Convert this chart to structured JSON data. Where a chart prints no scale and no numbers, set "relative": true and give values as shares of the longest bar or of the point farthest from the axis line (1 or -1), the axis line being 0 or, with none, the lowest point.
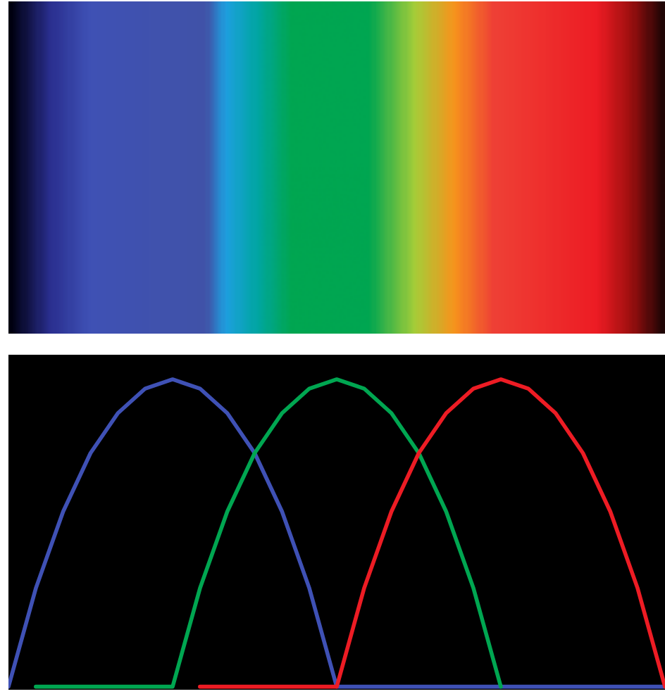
{
  "chart_data": {
    "type": "line",
    "relative": true,
    "marker": "none",
    "line_style": "solid",
    "categories": [
      null,
      null,
      null,
      null,
      null,
      null,
      null,
      null,
      null,
      null,
      null,
      null,
      null,
      null,
      null,
      null,
      null,
      null,
      null,
      null,
      null,
      null,
      null,
      null,
      null
    ],
    "series": [
      {
        "color": "#3f51b5",
        "values": [
          0,
          0.32,
          0.57,
          0.76,
          0.89,
          0.97,
          1,
          0.97,
          0.89,
          0.76,
          0.57,
          0.32,
          0,
          0,
          0,
          0,
          0,
          0,
          0,
          0,
          0,
          0,
          0,
          0,
          0
        ]
      },
      {
        "color": "#00a651",
        "values": [
          null,
          0,
          0,
          0,
          0,
          0,
          0,
          0.32,
          0.57,
          0.76,
          0.89,
          0.97,
          1,
          0.97,
          0.89,
          0.76,
          0.57,
          0.32,
          0,
          null,
          null,
          null,
          null,
          null,
          null
        ]
      },
      {
        "color": "#ed1c24",
        "values": [
          null,
          null,
          null,
          null,
          null,
          null,
          null,
          0,
          0,
          0,
          0,
          0,
          0,
          0.32,
          0.57,
          0.76,
          0.89,
          0.97,
          1,
          0.97,
          0.89,
          0.76,
          0.57,
          0.32,
          0
        ]
      }
    ]
  }
}
